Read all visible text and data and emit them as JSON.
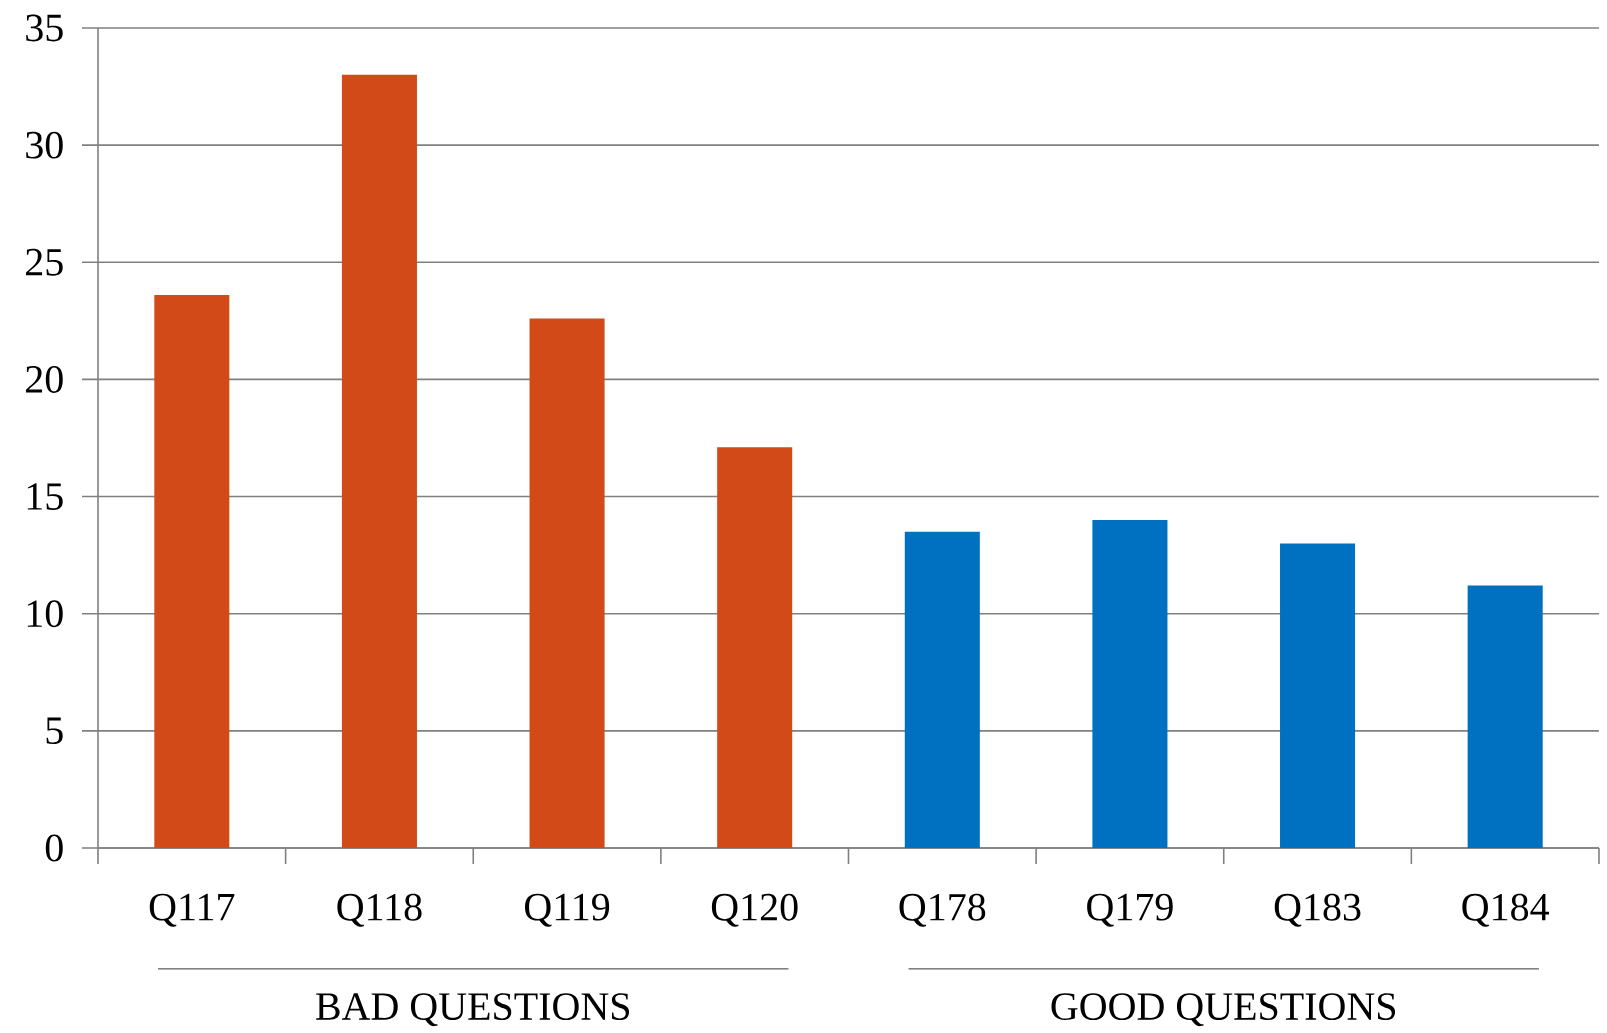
{
  "chart_data": {
    "type": "bar",
    "categories": [
      "Q117",
      "Q118",
      "Q119",
      "Q120",
      "Q178",
      "Q179",
      "Q183",
      "Q184"
    ],
    "values": [
      23.6,
      33,
      22.6,
      17.1,
      13.5,
      14.0,
      13.0,
      11.2
    ],
    "colors": [
      "#d24a17",
      "#d24a17",
      "#d24a17",
      "#d24a17",
      "#0070c0",
      "#0070c0",
      "#0070c0",
      "#0070c0"
    ],
    "ylim": [
      0,
      35
    ],
    "yticks": [
      0,
      5,
      10,
      15,
      20,
      25,
      30,
      35
    ],
    "grid": "y",
    "annotations": [
      "BAD QUESTIONS",
      "GOOD QUESTIONS"
    ]
  }
}
